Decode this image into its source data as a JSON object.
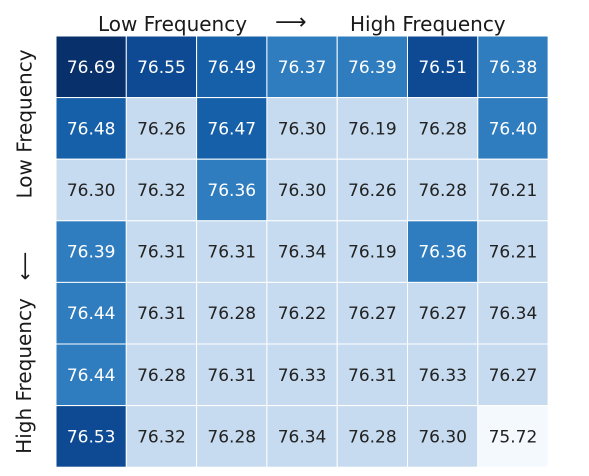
{
  "chart_data": {
    "type": "heatmap",
    "top_label": {
      "low": "Low Frequency",
      "arrow": "⟶",
      "high": "High Frequency"
    },
    "left_label": {
      "low": "Low Frequency",
      "arrow": "⟵",
      "high": "High Frequency"
    },
    "rows": 7,
    "cols": 7,
    "values": [
      [
        76.69,
        76.55,
        76.49,
        76.37,
        76.39,
        76.51,
        76.38
      ],
      [
        76.48,
        76.26,
        76.47,
        76.3,
        76.19,
        76.28,
        76.4
      ],
      [
        76.3,
        76.32,
        76.36,
        76.3,
        76.26,
        76.28,
        76.21
      ],
      [
        76.39,
        76.31,
        76.31,
        76.34,
        76.19,
        76.36,
        76.21
      ],
      [
        76.44,
        76.31,
        76.28,
        76.22,
        76.27,
        76.27,
        76.34
      ],
      [
        76.44,
        76.28,
        76.31,
        76.33,
        76.31,
        76.33,
        76.27
      ],
      [
        76.53,
        76.32,
        76.28,
        76.34,
        76.28,
        76.3,
        75.72
      ]
    ],
    "colormap": "Blues",
    "colors": {
      "darkest": "#08306b",
      "very_dark": "#0d4a93",
      "dark": "#1660a9",
      "medium": "#2f7dbe",
      "light": "#c6dbef",
      "lightest": "#f4f9fe",
      "text_dark": "#222222",
      "text_light": "#ffffff"
    },
    "legend": "none",
    "grid": false
  }
}
